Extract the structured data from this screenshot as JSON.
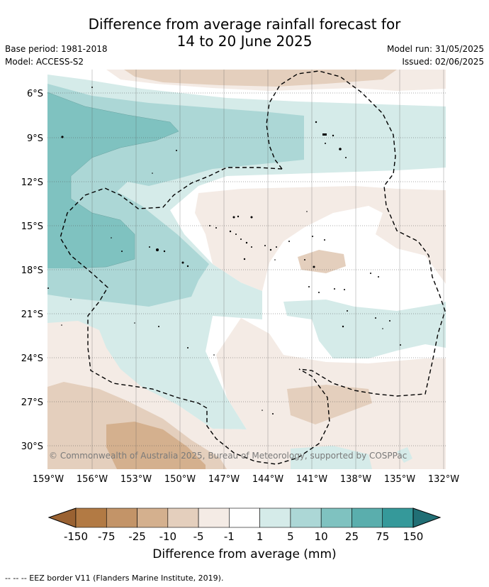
{
  "title_line1": "Difference from average rainfall forecast for",
  "title_line2": "14 to 20 June 2025",
  "meta": {
    "base_period": "Base period: 1981-2018",
    "model": "Model: ACCESS-S2",
    "model_run": "Model run: 31/05/2025",
    "issued": "Issued: 02/06/2025"
  },
  "map": {
    "lat_labels": [
      "6°S",
      "9°S",
      "12°S",
      "15°S",
      "18°S",
      "21°S",
      "24°S",
      "27°S",
      "30°S"
    ],
    "lon_labels": [
      "159°W",
      "156°W",
      "153°W",
      "150°W",
      "147°W",
      "144°W",
      "141°W",
      "138°W",
      "135°W",
      "132°W"
    ],
    "copyright": "© Commonwealth of Australia 2025, Bureau of Meteorology, supported by COSPPac",
    "grid": true,
    "border_line": "dashed"
  },
  "colorbar": {
    "title": "Difference from average (mm)",
    "ticks": [
      "-150",
      "-75",
      "-25",
      "-10",
      "-5",
      "-1",
      "1",
      "5",
      "10",
      "25",
      "75",
      "150"
    ],
    "colors": [
      "#9a6232",
      "#b27a44",
      "#c39468",
      "#d4b08e",
      "#e4cfbd",
      "#f4ebe5",
      "#ffffff",
      "#d5ebe9",
      "#acd7d6",
      "#7fc2c0",
      "#5aaead",
      "#35999a",
      "#216f75"
    ]
  },
  "eez_note": "--  --  -- EEZ border V11 (Flanders Marine Institute, 2019)."
}
